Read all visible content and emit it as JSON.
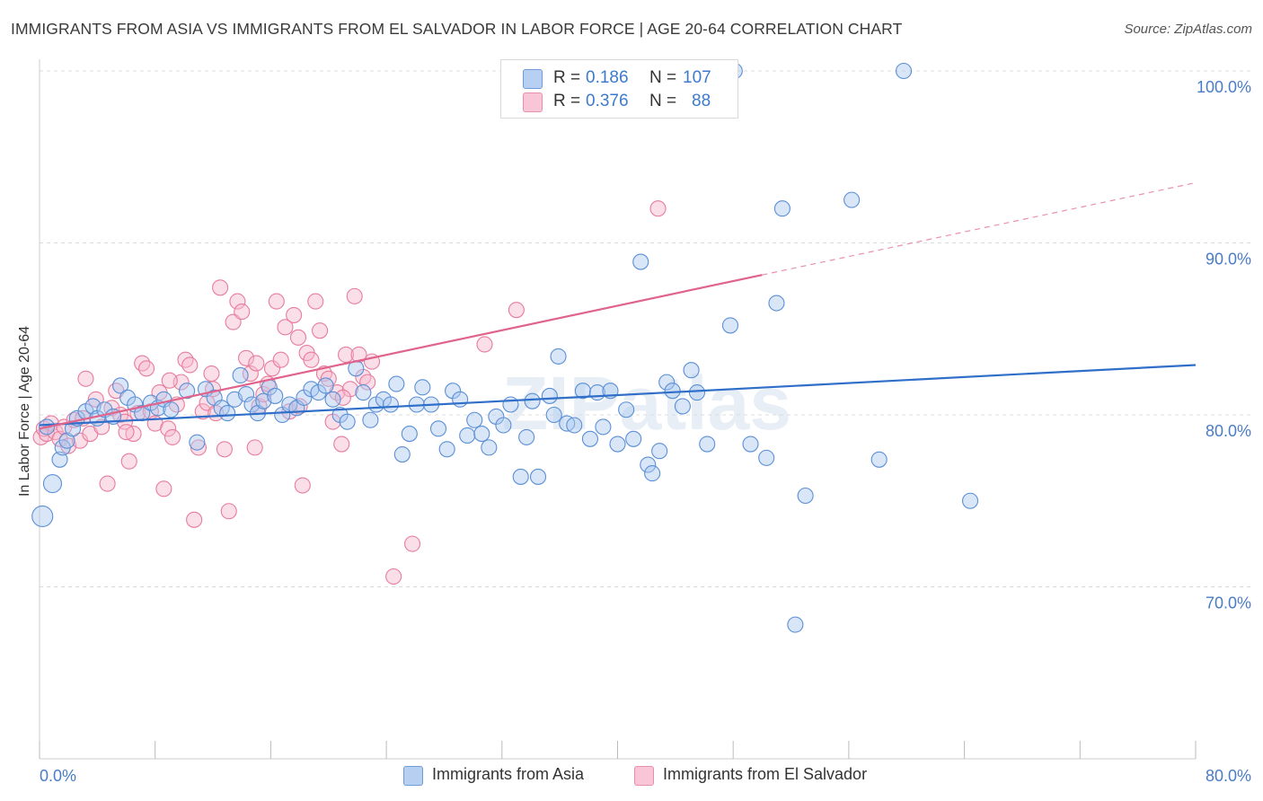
{
  "title": "IMMIGRANTS FROM ASIA VS IMMIGRANTS FROM EL SALVADOR IN LABOR FORCE | AGE 20-64 CORRELATION CHART",
  "source": "Source: ZipAtlas.com",
  "watermark": "ZIPatlas",
  "legend": {
    "r_label": "R =",
    "n_label": "N =",
    "items": [
      {
        "r": "0.186",
        "n": "107"
      },
      {
        "r": "0.376",
        "n": "88"
      }
    ]
  },
  "chart_data": {
    "type": "scatter",
    "title": "IMMIGRANTS FROM ASIA VS IMMIGRANTS FROM EL SALVADOR IN LABOR FORCE | AGE 20-64 CORRELATION CHART",
    "xlabel": "",
    "ylabel": "In Labor Force | Age 20-64",
    "xlim": [
      0,
      80
    ],
    "ylim": [
      60,
      102
    ],
    "x_tick_labels": [
      "0.0%",
      "80.0%"
    ],
    "y_ticks": [
      70,
      80,
      90,
      100
    ],
    "y_tick_labels": [
      "70.0%",
      "80.0%",
      "90.0%",
      "100.0%"
    ],
    "grid": true,
    "legend_position": "top-center",
    "colors": {
      "asia_fill": "#a9c8ef",
      "asia_stroke": "#5b8fd6",
      "asia_line": "#2f6fc9",
      "salvador_fill": "#f6b9cb",
      "salvador_stroke": "#e77c9e",
      "salvador_line": "#e0638b",
      "tick_label": "#4a7cc6",
      "grid": "#dcdcdc"
    },
    "series": [
      {
        "name": "Immigrants from Asia",
        "trend": {
          "x0": 0,
          "y0": 79.4,
          "x1": 80,
          "y1": 82.9,
          "dashed_from": null
        },
        "points": [
          [
            0.2,
            74.1
          ],
          [
            0.9,
            76.0
          ],
          [
            1.4,
            77.4
          ],
          [
            1.6,
            78.1
          ],
          [
            1.9,
            78.5
          ],
          [
            2.3,
            79.2
          ],
          [
            2.6,
            79.8
          ],
          [
            3.2,
            80.2
          ],
          [
            3.7,
            80.5
          ],
          [
            4.0,
            79.8
          ],
          [
            4.5,
            80.3
          ],
          [
            5.1,
            79.9
          ],
          [
            5.6,
            81.7
          ],
          [
            6.1,
            81.0
          ],
          [
            6.6,
            80.6
          ],
          [
            7.1,
            80.1
          ],
          [
            7.7,
            80.7
          ],
          [
            8.2,
            80.4
          ],
          [
            8.6,
            80.9
          ],
          [
            9.1,
            80.3
          ],
          [
            10.2,
            81.4
          ],
          [
            10.9,
            78.4
          ],
          [
            11.5,
            81.5
          ],
          [
            12.1,
            81.0
          ],
          [
            12.6,
            80.4
          ],
          [
            13.0,
            80.1
          ],
          [
            13.5,
            80.9
          ],
          [
            13.9,
            82.3
          ],
          [
            14.3,
            81.2
          ],
          [
            14.7,
            80.6
          ],
          [
            15.1,
            80.1
          ],
          [
            15.5,
            80.8
          ],
          [
            15.9,
            81.6
          ],
          [
            16.3,
            81.1
          ],
          [
            16.8,
            80.0
          ],
          [
            17.3,
            80.6
          ],
          [
            17.8,
            80.4
          ],
          [
            18.3,
            81.0
          ],
          [
            18.8,
            81.5
          ],
          [
            19.3,
            81.3
          ],
          [
            19.8,
            81.7
          ],
          [
            20.3,
            80.9
          ],
          [
            20.8,
            80.0
          ],
          [
            21.3,
            79.6
          ],
          [
            21.9,
            82.7
          ],
          [
            22.4,
            81.3
          ],
          [
            22.9,
            79.7
          ],
          [
            23.3,
            80.6
          ],
          [
            23.8,
            80.9
          ],
          [
            24.3,
            80.6
          ],
          [
            24.7,
            81.8
          ],
          [
            25.1,
            77.7
          ],
          [
            25.6,
            78.9
          ],
          [
            26.1,
            80.6
          ],
          [
            26.5,
            81.6
          ],
          [
            27.1,
            80.6
          ],
          [
            27.6,
            79.2
          ],
          [
            28.2,
            78.0
          ],
          [
            28.6,
            81.4
          ],
          [
            29.1,
            80.9
          ],
          [
            29.6,
            78.8
          ],
          [
            30.1,
            79.7
          ],
          [
            30.6,
            78.9
          ],
          [
            31.1,
            78.1
          ],
          [
            31.6,
            79.9
          ],
          [
            32.1,
            79.4
          ],
          [
            32.6,
            80.6
          ],
          [
            33.3,
            76.4
          ],
          [
            33.7,
            78.7
          ],
          [
            34.1,
            80.8
          ],
          [
            34.5,
            76.4
          ],
          [
            35.3,
            81.1
          ],
          [
            35.6,
            80.0
          ],
          [
            35.9,
            83.4
          ],
          [
            36.5,
            79.5
          ],
          [
            37.0,
            79.4
          ],
          [
            37.6,
            81.4
          ],
          [
            38.1,
            78.6
          ],
          [
            38.6,
            81.3
          ],
          [
            39.0,
            79.3
          ],
          [
            39.5,
            81.4
          ],
          [
            40.0,
            78.3
          ],
          [
            40.6,
            80.3
          ],
          [
            41.1,
            78.6
          ],
          [
            41.6,
            88.9
          ],
          [
            42.1,
            77.1
          ],
          [
            42.4,
            76.6
          ],
          [
            42.9,
            77.9
          ],
          [
            43.4,
            81.9
          ],
          [
            43.8,
            81.4
          ],
          [
            44.5,
            80.5
          ],
          [
            45.1,
            82.6
          ],
          [
            45.5,
            81.3
          ],
          [
            46.2,
            78.3
          ],
          [
            48.1,
            100.0
          ],
          [
            47.8,
            85.2
          ],
          [
            49.2,
            78.3
          ],
          [
            50.3,
            77.5
          ],
          [
            51.0,
            86.5
          ],
          [
            51.4,
            92.0
          ],
          [
            52.3,
            67.8
          ],
          [
            53.0,
            75.3
          ],
          [
            56.2,
            92.5
          ],
          [
            58.1,
            77.4
          ],
          [
            59.8,
            100.0
          ],
          [
            64.4,
            75.0
          ],
          [
            0.5,
            79.3
          ]
        ]
      },
      {
        "name": "Immigrants from El Salvador",
        "trend": {
          "x0": 0,
          "y0": 79.2,
          "x1": 80,
          "y1": 93.5,
          "dashed_from": 50
        },
        "points": [
          [
            0.1,
            78.7
          ],
          [
            0.3,
            79.2
          ],
          [
            0.5,
            78.9
          ],
          [
            0.8,
            79.5
          ],
          [
            1.1,
            79.0
          ],
          [
            1.4,
            78.6
          ],
          [
            1.7,
            79.3
          ],
          [
            2.0,
            78.2
          ],
          [
            2.4,
            79.7
          ],
          [
            2.8,
            78.5
          ],
          [
            3.2,
            82.1
          ],
          [
            3.5,
            78.9
          ],
          [
            3.9,
            80.9
          ],
          [
            4.3,
            79.3
          ],
          [
            4.7,
            76.0
          ],
          [
            5.0,
            80.4
          ],
          [
            5.3,
            81.4
          ],
          [
            5.6,
            80.0
          ],
          [
            5.9,
            79.6
          ],
          [
            6.2,
            77.3
          ],
          [
            6.5,
            78.9
          ],
          [
            6.8,
            80.1
          ],
          [
            7.1,
            83.0
          ],
          [
            7.4,
            82.7
          ],
          [
            7.7,
            80.2
          ],
          [
            8.0,
            79.5
          ],
          [
            8.3,
            81.3
          ],
          [
            8.6,
            75.7
          ],
          [
            8.9,
            79.2
          ],
          [
            9.2,
            78.7
          ],
          [
            9.5,
            80.6
          ],
          [
            9.8,
            81.9
          ],
          [
            10.1,
            83.2
          ],
          [
            10.4,
            82.9
          ],
          [
            10.7,
            73.9
          ],
          [
            11.0,
            78.1
          ],
          [
            11.3,
            80.2
          ],
          [
            11.6,
            80.7
          ],
          [
            11.9,
            82.4
          ],
          [
            12.2,
            80.1
          ],
          [
            12.5,
            87.4
          ],
          [
            12.8,
            78.0
          ],
          [
            13.1,
            74.4
          ],
          [
            13.4,
            85.4
          ],
          [
            13.7,
            86.6
          ],
          [
            14.0,
            86.0
          ],
          [
            14.3,
            83.3
          ],
          [
            14.6,
            82.4
          ],
          [
            14.9,
            78.1
          ],
          [
            15.2,
            80.5
          ],
          [
            15.5,
            81.2
          ],
          [
            15.8,
            81.8
          ],
          [
            16.1,
            82.7
          ],
          [
            16.4,
            86.6
          ],
          [
            16.7,
            83.2
          ],
          [
            17.0,
            85.1
          ],
          [
            17.3,
            80.2
          ],
          [
            17.6,
            85.8
          ],
          [
            17.9,
            84.5
          ],
          [
            18.2,
            75.9
          ],
          [
            18.5,
            83.6
          ],
          [
            18.8,
            83.2
          ],
          [
            19.1,
            86.6
          ],
          [
            19.4,
            84.9
          ],
          [
            19.7,
            82.4
          ],
          [
            20.0,
            82.1
          ],
          [
            20.3,
            79.6
          ],
          [
            20.6,
            81.3
          ],
          [
            20.9,
            78.3
          ],
          [
            21.2,
            83.5
          ],
          [
            21.5,
            81.5
          ],
          [
            21.8,
            86.9
          ],
          [
            22.1,
            83.5
          ],
          [
            22.4,
            82.2
          ],
          [
            22.7,
            81.9
          ],
          [
            23.0,
            83.1
          ],
          [
            25.8,
            72.5
          ],
          [
            24.5,
            70.6
          ],
          [
            30.8,
            84.1
          ],
          [
            33.0,
            86.1
          ],
          [
            42.8,
            92.0
          ],
          [
            3.0,
            79.8
          ],
          [
            6.0,
            79.0
          ],
          [
            9.0,
            82.0
          ],
          [
            12.0,
            81.5
          ],
          [
            15.0,
            83.0
          ],
          [
            18.0,
            80.5
          ],
          [
            21.0,
            81.0
          ]
        ]
      }
    ]
  },
  "bottom_legend": [
    "Immigrants from Asia",
    "Immigrants from El Salvador"
  ]
}
